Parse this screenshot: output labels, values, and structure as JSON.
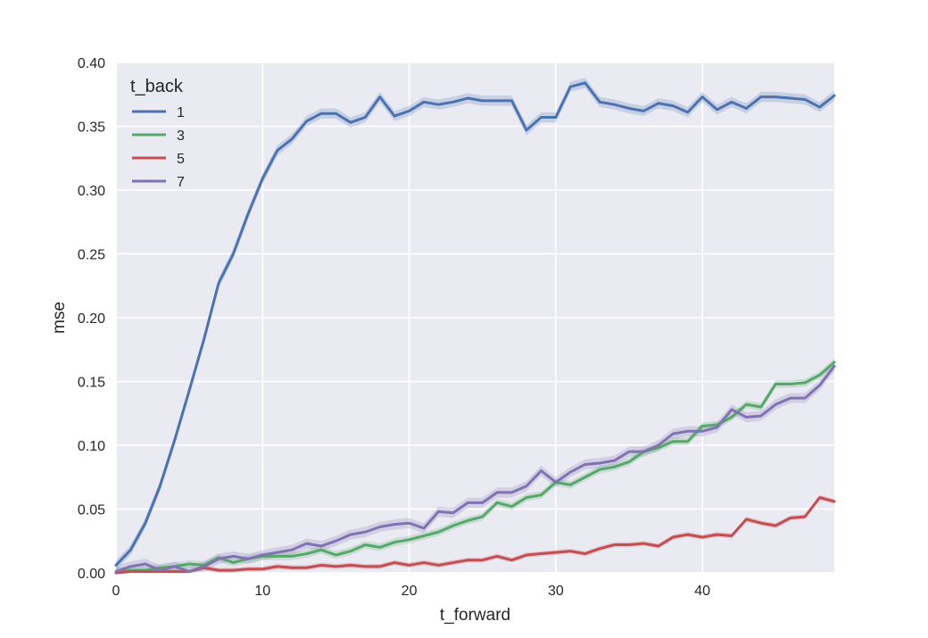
{
  "chart_data": {
    "type": "line",
    "xlabel": "t_forward",
    "ylabel": "mse",
    "xlim": [
      0,
      49
    ],
    "ylim": [
      0,
      0.4
    ],
    "x_ticks": [
      0,
      10,
      20,
      30,
      40
    ],
    "y_ticks": [
      0.0,
      0.05,
      0.1,
      0.15,
      0.2,
      0.25,
      0.3,
      0.35,
      0.4
    ],
    "x_tick_labels": [
      "0",
      "10",
      "20",
      "30",
      "40"
    ],
    "y_tick_labels": [
      "0.00",
      "0.05",
      "0.10",
      "0.15",
      "0.20",
      "0.25",
      "0.30",
      "0.35",
      "0.40"
    ],
    "grid": true,
    "background": "#eaeaf2",
    "legend": {
      "title": "t_back",
      "position": "top-left"
    },
    "x": [
      0,
      1,
      2,
      3,
      4,
      5,
      6,
      7,
      8,
      9,
      10,
      11,
      12,
      13,
      14,
      15,
      16,
      17,
      18,
      19,
      20,
      21,
      22,
      23,
      24,
      25,
      26,
      27,
      28,
      29,
      30,
      31,
      32,
      33,
      34,
      35,
      36,
      37,
      38,
      39,
      40,
      41,
      42,
      43,
      44,
      45,
      46,
      47,
      48,
      49
    ],
    "series": [
      {
        "name": "1",
        "color": "#4c72b0",
        "band": 0.004,
        "values": [
          0.006,
          0.018,
          0.039,
          0.068,
          0.104,
          0.143,
          0.183,
          0.227,
          0.25,
          0.281,
          0.309,
          0.331,
          0.34,
          0.354,
          0.36,
          0.36,
          0.353,
          0.357,
          0.373,
          0.358,
          0.362,
          0.369,
          0.367,
          0.369,
          0.372,
          0.37,
          0.37,
          0.37,
          0.347,
          0.357,
          0.357,
          0.381,
          0.384,
          0.369,
          0.367,
          0.364,
          0.362,
          0.368,
          0.366,
          0.361,
          0.373,
          0.363,
          0.369,
          0.364,
          0.373,
          0.373,
          0.372,
          0.371,
          0.365,
          0.374
        ]
      },
      {
        "name": "3",
        "color": "#55a868",
        "band": 0.003,
        "values": [
          0.001,
          0.002,
          0.002,
          0.004,
          0.005,
          0.007,
          0.006,
          0.012,
          0.008,
          0.011,
          0.013,
          0.013,
          0.013,
          0.015,
          0.018,
          0.014,
          0.017,
          0.022,
          0.02,
          0.024,
          0.026,
          0.029,
          0.032,
          0.037,
          0.041,
          0.044,
          0.055,
          0.052,
          0.059,
          0.061,
          0.071,
          0.069,
          0.075,
          0.081,
          0.083,
          0.087,
          0.095,
          0.098,
          0.103,
          0.103,
          0.115,
          0.116,
          0.122,
          0.132,
          0.13,
          0.148,
          0.148,
          0.149,
          0.155,
          0.165
        ]
      },
      {
        "name": "5",
        "color": "#c44e52",
        "band": 0.002,
        "values": [
          0.0,
          0.001,
          0.001,
          0.001,
          0.001,
          0.001,
          0.004,
          0.002,
          0.002,
          0.003,
          0.003,
          0.005,
          0.004,
          0.004,
          0.006,
          0.005,
          0.006,
          0.005,
          0.005,
          0.008,
          0.006,
          0.008,
          0.006,
          0.008,
          0.01,
          0.01,
          0.013,
          0.01,
          0.014,
          0.015,
          0.016,
          0.017,
          0.015,
          0.019,
          0.022,
          0.022,
          0.023,
          0.021,
          0.028,
          0.03,
          0.028,
          0.03,
          0.029,
          0.042,
          0.039,
          0.037,
          0.043,
          0.044,
          0.059,
          0.056
        ]
      },
      {
        "name": "7",
        "color": "#8172b2",
        "band": 0.004,
        "values": [
          0.001,
          0.005,
          0.007,
          0.002,
          0.005,
          0.001,
          0.005,
          0.011,
          0.013,
          0.011,
          0.014,
          0.016,
          0.018,
          0.023,
          0.021,
          0.025,
          0.03,
          0.032,
          0.036,
          0.038,
          0.039,
          0.035,
          0.048,
          0.047,
          0.055,
          0.055,
          0.063,
          0.063,
          0.068,
          0.08,
          0.071,
          0.079,
          0.085,
          0.086,
          0.088,
          0.095,
          0.095,
          0.1,
          0.109,
          0.111,
          0.111,
          0.114,
          0.128,
          0.122,
          0.123,
          0.132,
          0.137,
          0.137,
          0.147,
          0.162
        ]
      }
    ]
  }
}
